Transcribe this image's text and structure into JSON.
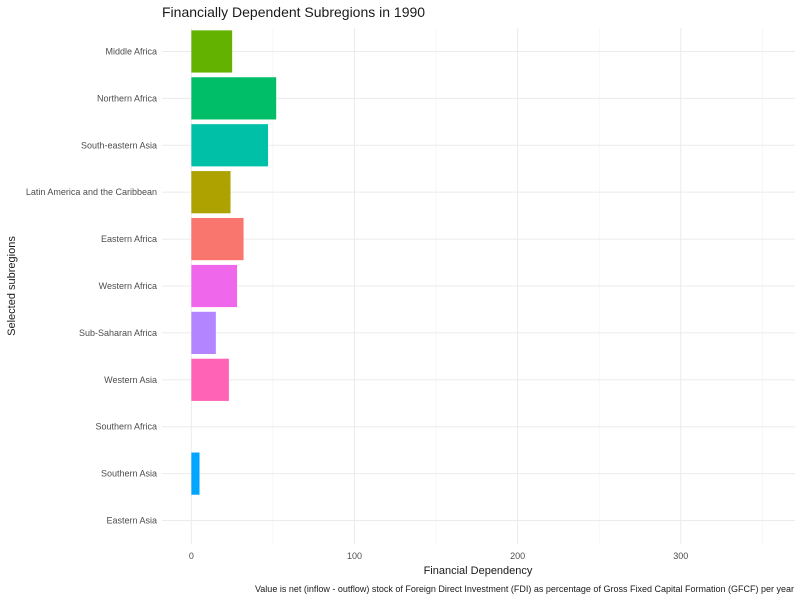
{
  "chart_data": {
    "type": "bar",
    "orientation": "horizontal",
    "title": "Financially Dependent Subregions in 1990",
    "xlabel": "Financial Dependency",
    "ylabel": "Selected subregions",
    "caption": "Value is net (inflow - outflow) stock of Foreign Direct Investment (FDI) as percentage of Gross Fixed Capital Formation (GFCF) per year",
    "xlim": [
      -18,
      370
    ],
    "xticks": [
      0,
      100,
      200,
      300
    ],
    "grid": true,
    "legend": "none",
    "categories": [
      "Middle Africa",
      "Northern Africa",
      "South-eastern Asia",
      "Latin America and the Caribbean",
      "Eastern Africa",
      "Western Africa",
      "Sub-Saharan Africa",
      "Western Asia",
      "Southern Africa",
      "Southern Asia",
      "Eastern Asia"
    ],
    "values": [
      25,
      52,
      47,
      24,
      32,
      28,
      15,
      23,
      0,
      5,
      0
    ],
    "colors": [
      "#64b200",
      "#00be67",
      "#00c1a7",
      "#aea200",
      "#f8766d",
      "#ef67eb",
      "#b385ff",
      "#ff63b6",
      "#00bade",
      "#00a5ff",
      "#db8e00"
    ]
  }
}
